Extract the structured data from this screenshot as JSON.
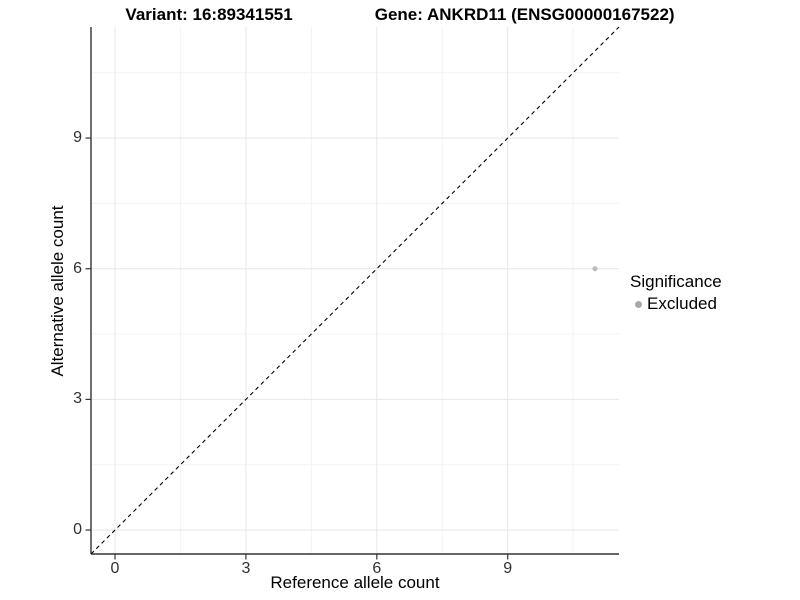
{
  "figure": {
    "title_variant": "Variant: 16:89341551",
    "title_gene": "Gene: ANKRD11 (ENSG00000167522)"
  },
  "chart_data": {
    "type": "scatter",
    "title": "Variant: 16:89341551   Gene: ANKRD11 (ENSG00000167522)",
    "xlabel": "Reference allele count",
    "ylabel": "Alternative allele count",
    "xlim": [
      -0.55,
      11.55
    ],
    "ylim": [
      -0.55,
      11.55
    ],
    "xticks": [
      0,
      3,
      6,
      9
    ],
    "yticks": [
      0,
      3,
      6,
      9
    ],
    "xminor": [
      1.5,
      4.5,
      7.5,
      10.5
    ],
    "yminor": [
      1.5,
      4.5,
      7.5,
      10.5
    ],
    "grid": true,
    "points": [
      {
        "x": 11,
        "y": 6,
        "significance": "Excluded"
      }
    ],
    "identity_line": {
      "slope": 1,
      "intercept": 0,
      "style": "dashed",
      "color": "#000000"
    },
    "legend": {
      "title": "Significance",
      "position": "right",
      "entries": [
        {
          "label": "Excluded",
          "color": "#a8a8a8"
        }
      ]
    },
    "colors": {
      "point": "#bdbdbd",
      "grid_major": "#e7e7e7",
      "grid_minor": "#f3f3f3",
      "axis_line": "#333333",
      "tick_mark": "#333333",
      "dashed_line": "#000000"
    }
  }
}
